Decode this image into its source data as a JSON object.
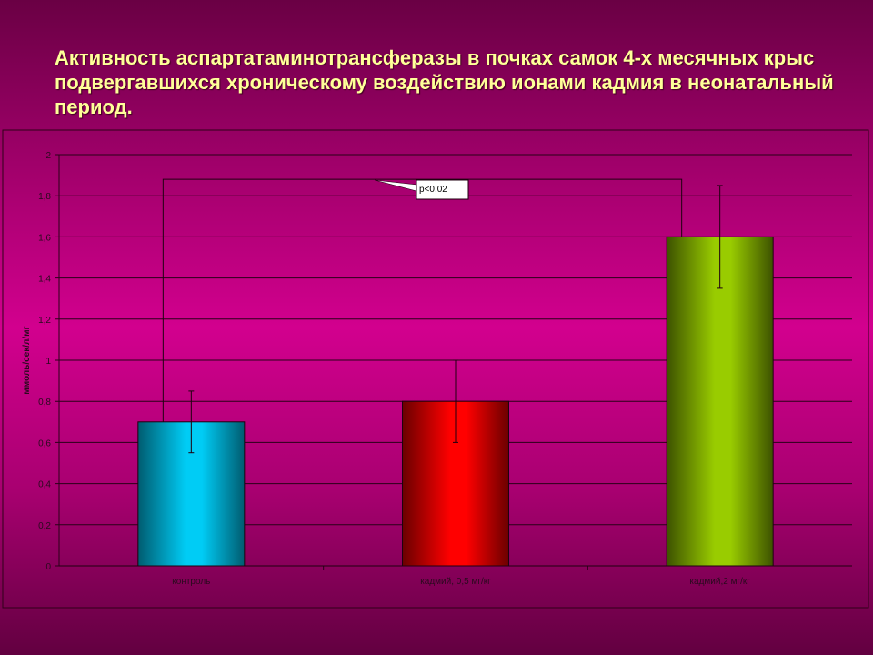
{
  "slide": {
    "title": "Активность аспартатаминотрансферазы в почках самок 4-х месячных крыс подвергавшихся  хроническому воздействию ионами кадмия в неонатальный период."
  },
  "chart_data": {
    "type": "bar",
    "title": "",
    "ylabel": "ммоль/сек/л/мг",
    "xlabel": "",
    "categories": [
      "контроль",
      "кадмий, 0,5 мг/кг",
      "кадмий,2 мг/кг"
    ],
    "values": [
      0.7,
      0.8,
      1.6
    ],
    "error_low": [
      0.55,
      0.6,
      1.35
    ],
    "error_high": [
      0.85,
      1.0,
      1.85
    ],
    "ylim": [
      0,
      2
    ],
    "yticks": [
      "0",
      "0,2",
      "0,4",
      "0,6",
      "0,8",
      "1",
      "1,2",
      "1,4",
      "1,6",
      "1,8",
      "2"
    ],
    "grid": true,
    "bar_colors": [
      "#00ccf5",
      "#ff0000",
      "#99cc00"
    ],
    "bar_edge_colors": [
      "#005c70",
      "#6a0000",
      "#3d5200"
    ],
    "annotation": {
      "text": "p<0,02",
      "bracket_level": 1.88,
      "between": [
        0,
        2
      ]
    }
  }
}
